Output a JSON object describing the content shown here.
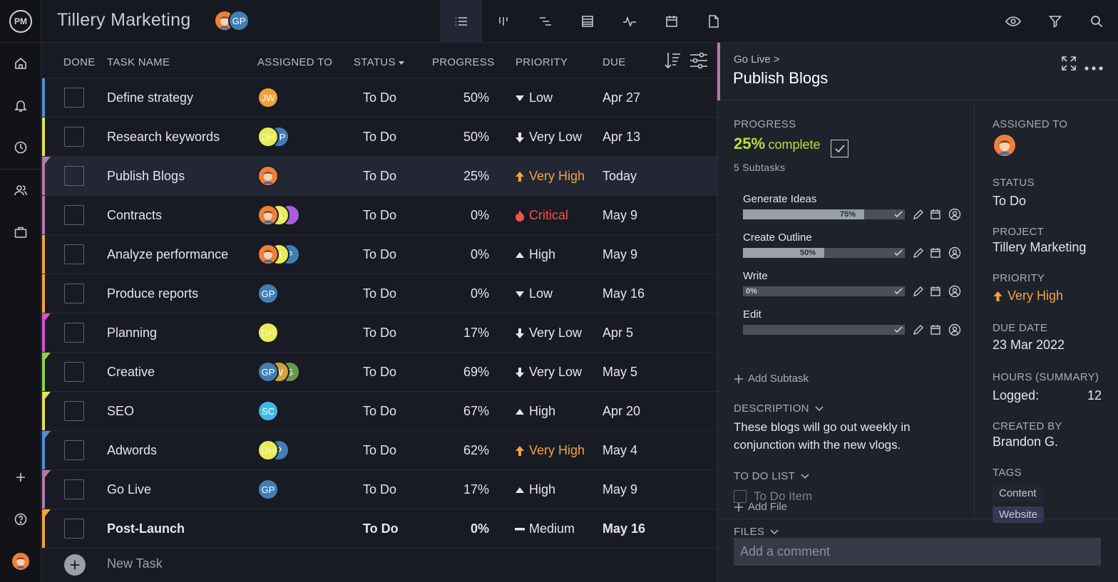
{
  "app": {
    "logo": "PM",
    "project_title": "Tillery Marketing",
    "header_avatars": [
      {
        "initials": "",
        "color": "#ef7f3a"
      },
      {
        "initials": "GP",
        "color": "#3f7fb6"
      }
    ]
  },
  "views": [
    {
      "icon": "list-view-icon",
      "active": true
    },
    {
      "icon": "board-view-icon",
      "active": false
    },
    {
      "icon": "gantt-view-icon",
      "active": false
    },
    {
      "icon": "sheet-view-icon",
      "active": false
    },
    {
      "icon": "dashboard-view-icon",
      "active": false
    },
    {
      "icon": "calendar-view-icon",
      "active": false
    },
    {
      "icon": "reports-view-icon",
      "active": false
    }
  ],
  "toolbar_icons": [
    "eye-icon",
    "filter-icon",
    "search-icon"
  ],
  "sidebar_icons": [
    "home-icon",
    "notifications-icon",
    "timesheet-icon",
    "team-icon",
    "portfolio-icon",
    "add-icon",
    "help-icon",
    "user-avatar"
  ],
  "table": {
    "headers": {
      "done": "DONE",
      "task_name": "TASK NAME",
      "assigned_to": "ASSIGNED TO",
      "status": "STATUS",
      "progress": "PROGRESS",
      "priority": "PRIORITY",
      "due": "DUE"
    },
    "rows": [
      {
        "name": "Define strategy",
        "strip": "#4f8fd6",
        "flag": false,
        "assignees": [
          {
            "i": "JW",
            "c": "#f0a23a"
          }
        ],
        "status": "To Do",
        "progress": "50%",
        "priority": "Low",
        "prio_icon": "triangle-down",
        "prio_color": "#e4e6eb",
        "due": "Apr 27"
      },
      {
        "name": "Research keywords",
        "strip": "#e3e35a",
        "flag": false,
        "assignees": [
          {
            "i": "DH",
            "c": "#e8ec5a",
            "dark": true
          },
          {
            "i": "GP",
            "c": "#3f7fb6"
          }
        ],
        "status": "To Do",
        "progress": "50%",
        "priority": "Very Low",
        "prio_icon": "arrow-down",
        "prio_color": "#e4e6eb",
        "due": "Apr 13"
      },
      {
        "name": "Publish Blogs",
        "strip": "#b679a8",
        "flag": true,
        "assignees": [
          {
            "i": "",
            "c": "#ef7f3a",
            "face": true
          }
        ],
        "status": "To Do",
        "progress": "25%",
        "priority": "Very High",
        "prio_icon": "arrow-up",
        "prio_color": "#f3a43b",
        "due": "Today"
      },
      {
        "name": "Contracts",
        "strip": "#b679a8",
        "flag": false,
        "assignees": [
          {
            "i": "",
            "c": "#ef7f3a",
            "face": true
          },
          {
            "i": "HL",
            "c": "#e8ec5a",
            "dark": true
          },
          {
            "i": "",
            "c": "#a95ee0"
          }
        ],
        "status": "To Do",
        "progress": "0%",
        "priority": "Critical",
        "prio_icon": "fire",
        "prio_color": "#f0554a",
        "due": "May 9"
      },
      {
        "name": "Analyze performance",
        "strip": "#f3a43b",
        "flag": false,
        "assignees": [
          {
            "i": "",
            "c": "#ef7f3a",
            "face": true
          },
          {
            "i": "H",
            "c": "#e8ec5a",
            "dark": true
          },
          {
            "i": "P",
            "c": "#3f7fb6"
          }
        ],
        "status": "To Do",
        "progress": "0%",
        "priority": "High",
        "prio_icon": "triangle-up",
        "prio_color": "#e4e6eb",
        "due": "May 9"
      },
      {
        "name": "Produce reports",
        "strip": "#f3a43b",
        "flag": false,
        "assignees": [
          {
            "i": "GP",
            "c": "#3f7fb6"
          }
        ],
        "status": "To Do",
        "progress": "0%",
        "priority": "Low",
        "prio_icon": "triangle-down",
        "prio_color": "#e4e6eb",
        "due": "May 16"
      },
      {
        "name": "Planning",
        "strip": "#d84fd0",
        "flag": true,
        "assignees": [
          {
            "i": "DH",
            "c": "#e8ec5a",
            "dark": true
          }
        ],
        "status": "To Do",
        "progress": "17%",
        "priority": "Very Low",
        "prio_icon": "arrow-down",
        "prio_color": "#e4e6eb",
        "due": "Apr 5"
      },
      {
        "name": "Creative",
        "strip": "#8dd14f",
        "flag": true,
        "assignees": [
          {
            "i": "GP",
            "c": "#3f7fb6"
          },
          {
            "i": "W",
            "c": "#d4a13c"
          },
          {
            "i": "G",
            "c": "#6d9a4a"
          }
        ],
        "status": "To Do",
        "progress": "69%",
        "priority": "Very Low",
        "prio_icon": "arrow-down",
        "prio_color": "#e4e6eb",
        "due": "May 5"
      },
      {
        "name": "SEO",
        "strip": "#e3e35a",
        "flag": true,
        "assignees": [
          {
            "i": "SC",
            "c": "#3fb8e8"
          }
        ],
        "status": "To Do",
        "progress": "67%",
        "priority": "High",
        "prio_icon": "triangle-up",
        "prio_color": "#e4e6eb",
        "due": "Apr 20"
      },
      {
        "name": "Adwords",
        "strip": "#4f8fd6",
        "flag": true,
        "assignees": [
          {
            "i": "DH",
            "c": "#e8ec5a",
            "dark": true
          },
          {
            "i": "P",
            "c": "#3f7fb6"
          }
        ],
        "status": "To Do",
        "progress": "62%",
        "priority": "Very High",
        "prio_icon": "arrow-up",
        "prio_color": "#f3a43b",
        "due": "May 4"
      },
      {
        "name": "Go Live",
        "strip": "#b679a8",
        "flag": true,
        "assignees": [
          {
            "i": "GP",
            "c": "#3f7fb6"
          }
        ],
        "status": "To Do",
        "progress": "17%",
        "priority": "High",
        "prio_icon": "triangle-up",
        "prio_color": "#e4e6eb",
        "due": "May 9"
      },
      {
        "name": "Post-Launch",
        "strip": "#f3a43b",
        "flag": true,
        "bold": true,
        "assignees": [],
        "status": "To Do",
        "progress": "0%",
        "priority": "Medium",
        "prio_icon": "dash",
        "prio_color": "#e4e6eb",
        "due": "May 16"
      }
    ],
    "new_task_label": "New Task"
  },
  "detail": {
    "breadcrumb": "Go Live >",
    "title": "Publish Blogs",
    "progress_label": "PROGRESS",
    "progress_value": "25%",
    "progress_suffix": "complete",
    "subtasks_count": "5 Subtasks",
    "subtasks": [
      {
        "name": "Generate Ideas",
        "pct": "75%",
        "fill": 0.75
      },
      {
        "name": "Create Outline",
        "pct": "50%",
        "fill": 0.5
      },
      {
        "name": "Write",
        "pct": "0%",
        "fill": 0
      },
      {
        "name": "Edit",
        "pct": "",
        "fill": 0
      }
    ],
    "add_subtask": "Add Subtask",
    "description_label": "DESCRIPTION",
    "description": "These blogs will go out weekly in conjunction with the new vlogs.",
    "todo_label": "TO DO LIST",
    "todo_item": "To Do Item",
    "files_label": "FILES",
    "add_file": "Add File",
    "assigned_label": "ASSIGNED TO",
    "status_label": "STATUS",
    "status": "To Do",
    "project_label": "PROJECT",
    "project": "Tillery Marketing",
    "priority_label": "PRIORITY",
    "priority": "Very High",
    "due_label": "DUE DATE",
    "due": "23 Mar 2022",
    "hours_label": "HOURS (SUMMARY)",
    "logged_label": "Logged:",
    "logged_value": "12",
    "created_label": "CREATED BY",
    "created_by": "Brandon G.",
    "tags_label": "TAGS",
    "tags": [
      "Content",
      "Website"
    ],
    "comment_placeholder": "Add a comment"
  }
}
